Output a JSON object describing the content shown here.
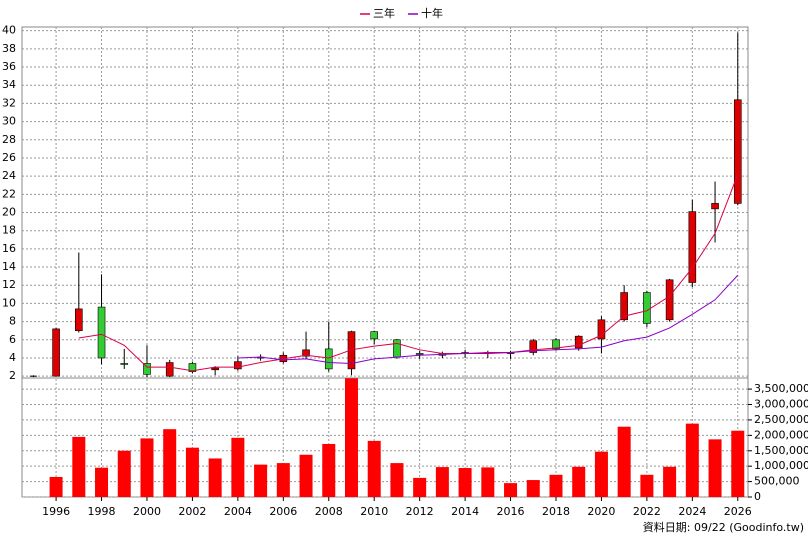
{
  "chart_data": {
    "type": "candlestick",
    "legend": "top",
    "x": [
      1995,
      1996,
      1997,
      1998,
      1999,
      2000,
      2001,
      2002,
      2003,
      2004,
      2005,
      2006,
      2007,
      2008,
      2009,
      2010,
      2011,
      2012,
      2013,
      2014,
      2015,
      2016,
      2017,
      2018,
      2019,
      2020,
      2021,
      2022,
      2023,
      2024,
      2025,
      2026
    ],
    "open": [
      2,
      2,
      7,
      9.6,
      3.4,
      3.4,
      2,
      3.4,
      2.7,
      2.8,
      4,
      3.6,
      4.2,
      5,
      2.8,
      6.9,
      6,
      4.5,
      4.5,
      4.5,
      4.6,
      4.5,
      4.6,
      6,
      5.1,
      6.1,
      8.2,
      11.2,
      8.2,
      12.3,
      20.4,
      21
    ],
    "high": [
      2.1,
      7.3,
      15.6,
      13.2,
      5,
      5.4,
      3.8,
      3.6,
      3.1,
      4.2,
      4.4,
      4.6,
      6.9,
      8,
      7,
      7,
      6.1,
      4.8,
      4.7,
      4.9,
      4.8,
      4.8,
      6.1,
      6.2,
      6.5,
      8.6,
      12,
      11.4,
      12.7,
      21.4,
      23.4,
      39.8
    ],
    "low": [
      1.9,
      2,
      6.8,
      3.3,
      2.8,
      1.9,
      1.9,
      2.3,
      2.1,
      2.6,
      3.7,
      3.4,
      3.9,
      2.5,
      2.1,
      5.5,
      3.9,
      3.9,
      4,
      4,
      4,
      3.9,
      4.3,
      4.8,
      4.8,
      4.5,
      8,
      7.4,
      8,
      11.8,
      16.7,
      20.8
    ],
    "close": [
      2,
      7.2,
      9.4,
      4,
      3.3,
      2.2,
      3.5,
      2.5,
      2.9,
      3.6,
      4.1,
      4.3,
      4.9,
      2.8,
      6.9,
      6.1,
      4.1,
      4.4,
      4.3,
      4.6,
      4.6,
      4.6,
      5.9,
      5,
      6.4,
      8.2,
      11.2,
      7.8,
      12.6,
      20.1,
      21,
      32.4
    ],
    "up_color": "#dd0000",
    "down_color": "#33cc33",
    "series": [
      {
        "name": "三年",
        "color": "#dd0044",
        "values": [
          null,
          null,
          6.2,
          6.6,
          5.4,
          3,
          3,
          2.6,
          3,
          3,
          3.5,
          3.9,
          4.3,
          4,
          4.9,
          5.3,
          5.6,
          4.9,
          4.5,
          4.5,
          4.6,
          4.6,
          4.9,
          5.1,
          5.4,
          6.5,
          8.6,
          9.2,
          10.8,
          13.9,
          17.7,
          24.2
        ]
      },
      {
        "name": "十年",
        "color": "#8800cc",
        "values": [
          null,
          null,
          null,
          null,
          null,
          null,
          null,
          null,
          null,
          4,
          4.1,
          3.8,
          3.9,
          3.5,
          3.4,
          3.9,
          4.1,
          4.3,
          4.4,
          4.5,
          4.5,
          4.6,
          4.8,
          4.9,
          5,
          5.2,
          5.9,
          6.3,
          7.3,
          8.8,
          10.4,
          13.1
        ]
      }
    ],
    "xlim": [
      1994.5,
      2026.45
    ],
    "xticks": [
      1996,
      1998,
      2000,
      2002,
      2004,
      2006,
      2008,
      2010,
      2012,
      2014,
      2016,
      2018,
      2020,
      2022,
      2024,
      2026
    ],
    "ylim": [
      1.8,
      40.4
    ],
    "yticks": [
      2,
      4,
      6,
      8,
      10,
      12,
      14,
      16,
      18,
      20,
      22,
      24,
      26,
      28,
      30,
      32,
      34,
      36,
      38,
      40
    ],
    "grid": true,
    "volume": {
      "type": "bar",
      "color": "#ff0000",
      "values": [
        0,
        650000,
        1950000,
        950000,
        1500000,
        1900000,
        2200000,
        1600000,
        1250000,
        1920000,
        1050000,
        1100000,
        1370000,
        1720000,
        3850000,
        1820000,
        1100000,
        620000,
        970000,
        940000,
        960000,
        450000,
        550000,
        720000,
        980000,
        1470000,
        2280000,
        720000,
        980000,
        2380000,
        1870000,
        2150000
      ],
      "ylim": [
        0,
        3860000
      ],
      "yticks": [
        0,
        {
          "value": 500000,
          "label": "500,000"
        },
        {
          "value": 1000000,
          "label": "1,000,000"
        },
        {
          "value": 1500000,
          "label": "1,500,000"
        },
        {
          "value": 2000000,
          "label": "2,000,000"
        },
        {
          "value": 2500000,
          "label": "2,500,000"
        },
        {
          "value": 3000000,
          "label": "3,000,000"
        },
        {
          "value": 3500000,
          "label": "3,500,000"
        }
      ]
    },
    "footer": "資料日期: 09/22 (Goodinfo.tw)"
  }
}
